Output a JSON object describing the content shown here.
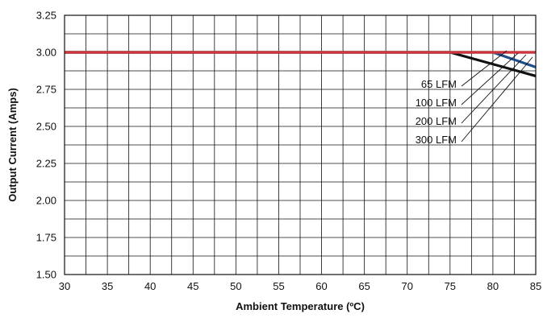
{
  "chart_data": {
    "type": "line",
    "title": "",
    "xlabel": "Ambient Temperature (ºC)",
    "ylabel": "Output Current (Amps)",
    "xlim": [
      30,
      85
    ],
    "ylim": [
      1.5,
      3.25
    ],
    "x_ticks": [
      "30",
      "35",
      "40",
      "45",
      "50",
      "55",
      "60",
      "65",
      "70",
      "75",
      "80",
      "85"
    ],
    "y_ticks": [
      "1.50",
      "1.75",
      "2.00",
      "2.25",
      "2.50",
      "2.75",
      "3.00",
      "3.25"
    ],
    "grid": true,
    "series": [
      {
        "name": "65 LFM",
        "color": "#111111",
        "x": [
          30,
          75,
          85
        ],
        "y": [
          3.0,
          3.0,
          2.84
        ]
      },
      {
        "name": "100 LFM",
        "color": "#1f4e8c",
        "x": [
          30,
          80,
          85
        ],
        "y": [
          3.0,
          3.0,
          2.9
        ]
      },
      {
        "name": "200 LFM",
        "color": "#2e9a4a",
        "x": [
          30,
          85
        ],
        "y": [
          3.0,
          3.0
        ]
      },
      {
        "name": "300 LFM",
        "color": "#d0343f",
        "x": [
          30,
          85
        ],
        "y": [
          3.0,
          3.0
        ]
      }
    ],
    "legend": "annotations-top-right"
  }
}
